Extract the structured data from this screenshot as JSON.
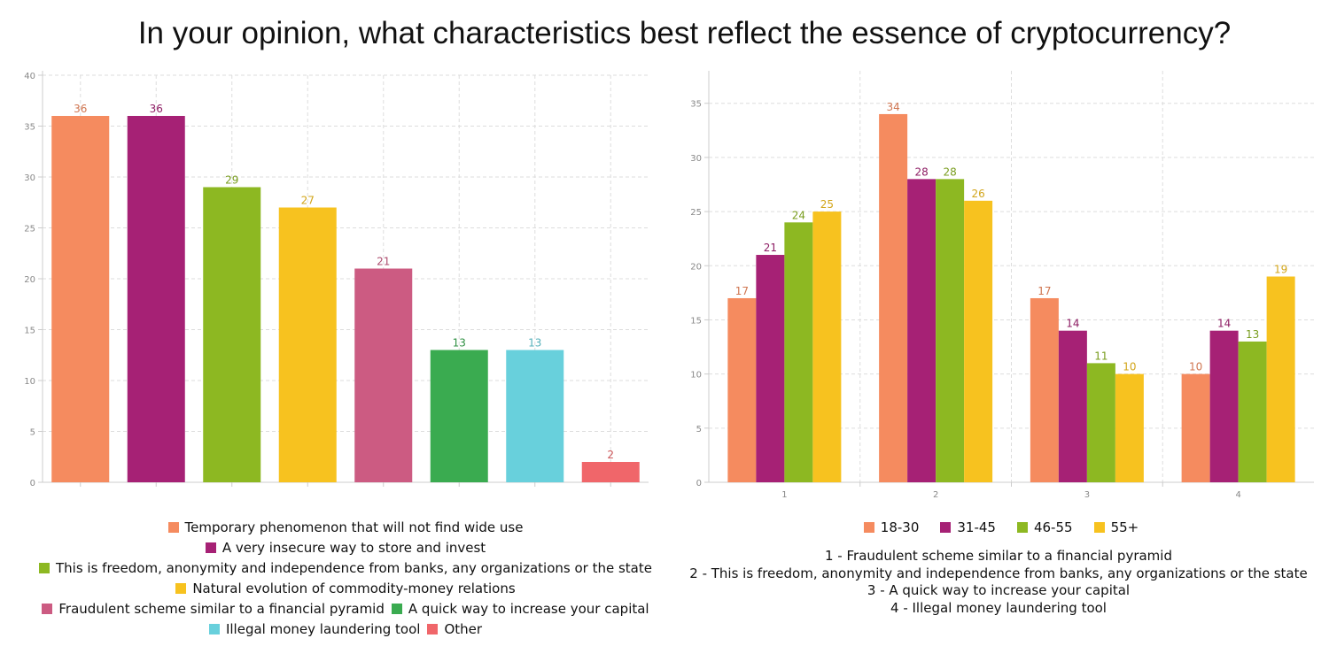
{
  "title": "In your opinion, what characteristics best reflect the essence of cryptocurrency?",
  "chart_data": [
    {
      "type": "bar",
      "title": "",
      "xlabel": "",
      "ylabel": "",
      "ylim": [
        0,
        40
      ],
      "yticks": [
        0,
        5,
        10,
        15,
        20,
        25,
        30,
        35,
        40
      ],
      "grid": true,
      "legend_position": "bottom",
      "categories": [
        "Temporary phenomenon that will not find wide use",
        "A very insecure way to store and invest",
        "This is freedom, anonymity and independence from banks, any organizations or the state",
        "Natural evolution of commodity-money relations",
        "Fraudulent scheme similar to a financial pyramid",
        "A quick way to increase your capital",
        "Illegal money laundering tool",
        "Other"
      ],
      "values": [
        36,
        36,
        29,
        27,
        21,
        13,
        13,
        2
      ],
      "colors": [
        "#f58b5f",
        "#a62175",
        "#8db822",
        "#f7c21f",
        "#cc5b82",
        "#3aab50",
        "#68d0dc",
        "#f0666a"
      ],
      "data_labels": [
        "36",
        "36",
        "29",
        "27",
        "21",
        "13",
        "13",
        "2"
      ],
      "legend_rows": [
        [
          0
        ],
        [
          1
        ],
        [
          2
        ],
        [
          3
        ],
        [
          4,
          5
        ],
        [
          6,
          7
        ]
      ]
    },
    {
      "type": "bar",
      "title": "",
      "xlabel": "",
      "ylabel": "",
      "ylim": [
        0,
        38
      ],
      "yticks": [
        0,
        5,
        10,
        15,
        20,
        25,
        30,
        35
      ],
      "grid": true,
      "legend_position": "bottom",
      "categories": [
        "1",
        "2",
        "3",
        "4"
      ],
      "series": [
        {
          "name": "18-30",
          "color": "#f58b5f",
          "values": [
            17,
            34,
            17,
            10
          ]
        },
        {
          "name": "31-45",
          "color": "#a62175",
          "values": [
            21,
            28,
            14,
            14
          ]
        },
        {
          "name": "46-55",
          "color": "#8db822",
          "values": [
            24,
            28,
            11,
            13
          ]
        },
        {
          "name": "55+",
          "color": "#f7c21f",
          "values": [
            25,
            26,
            10,
            19
          ]
        }
      ],
      "footnotes": [
        "1 - Fraudulent scheme similar to a financial pyramid",
        "2 - This is freedom, anonymity and independence from banks, any organizations or the state",
        "3 - A quick way to increase your capital",
        "4 - Illegal money laundering tool"
      ]
    }
  ]
}
